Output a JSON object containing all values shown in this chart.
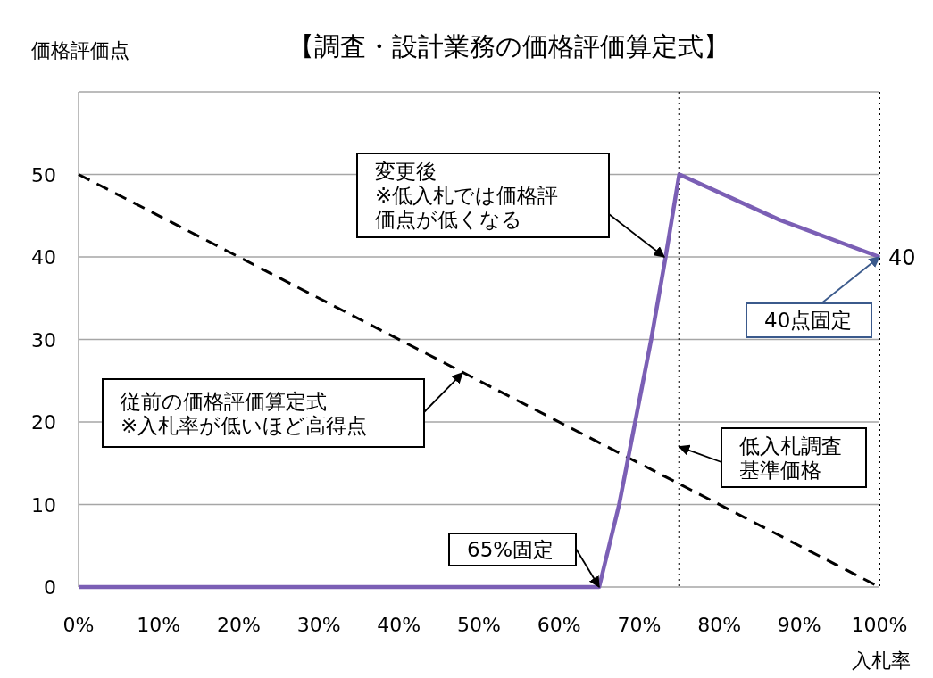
{
  "chart_data": {
    "type": "line",
    "title": "【調査・設計業務の価格評価算定式】",
    "ylabel": "価格評価点",
    "xlabel": "入札率",
    "xlim": [
      0,
      100
    ],
    "xticks": [
      {
        "value": 0,
        "label": "0%"
      },
      {
        "value": 10,
        "label": "10%"
      },
      {
        "value": 20,
        "label": "20%"
      },
      {
        "value": 30,
        "label": "30%"
      },
      {
        "value": 40,
        "label": "40%"
      },
      {
        "value": 50,
        "label": "50%"
      },
      {
        "value": 60,
        "label": "60%"
      },
      {
        "value": 70,
        "label": "70%"
      },
      {
        "value": 80,
        "label": "80%"
      },
      {
        "value": 90,
        "label": "90%"
      },
      {
        "value": 100,
        "label": "100%"
      }
    ],
    "ylim": [
      0,
      60
    ],
    "yticks": [
      0,
      10,
      20,
      30,
      40,
      50,
      {
        "value": 60,
        "label": null
      }
    ],
    "grid": "y",
    "series": [
      {
        "color": "#000000",
        "line_style": "dashed",
        "x": [
          0,
          100
        ],
        "values": [
          50,
          0
        ]
      },
      {
        "color": "#7b5fb5",
        "line_style": "solid",
        "x": [
          0,
          65,
          67.5,
          69.5,
          71.5,
          73.3,
          75,
          87.5,
          100
        ],
        "values": [
          0,
          0,
          10,
          20,
          30,
          40,
          50,
          44.5,
          40
        ]
      }
    ],
    "ref_lines": [
      {
        "axis": "x",
        "value": 75,
        "color": "#000000",
        "line_style": "dotted"
      },
      {
        "axis": "x",
        "value": 100,
        "color": "#000000",
        "line_style": "dotted"
      }
    ],
    "annotations": [
      "変更後※低入札では価格評価点が低くなる",
      {
        "text": "40点固定",
        "x": 100,
        "y": 40
      },
      "従前の価格評価算定式※入札率が低いほど高得点",
      {
        "text": "低入札調査基準価格",
        "x": 75,
        "y": 17
      },
      {
        "text": "65%固定",
        "x": 65,
        "y": 0
      },
      {
        "text": "40",
        "x": 100,
        "y": 40
      }
    ]
  }
}
